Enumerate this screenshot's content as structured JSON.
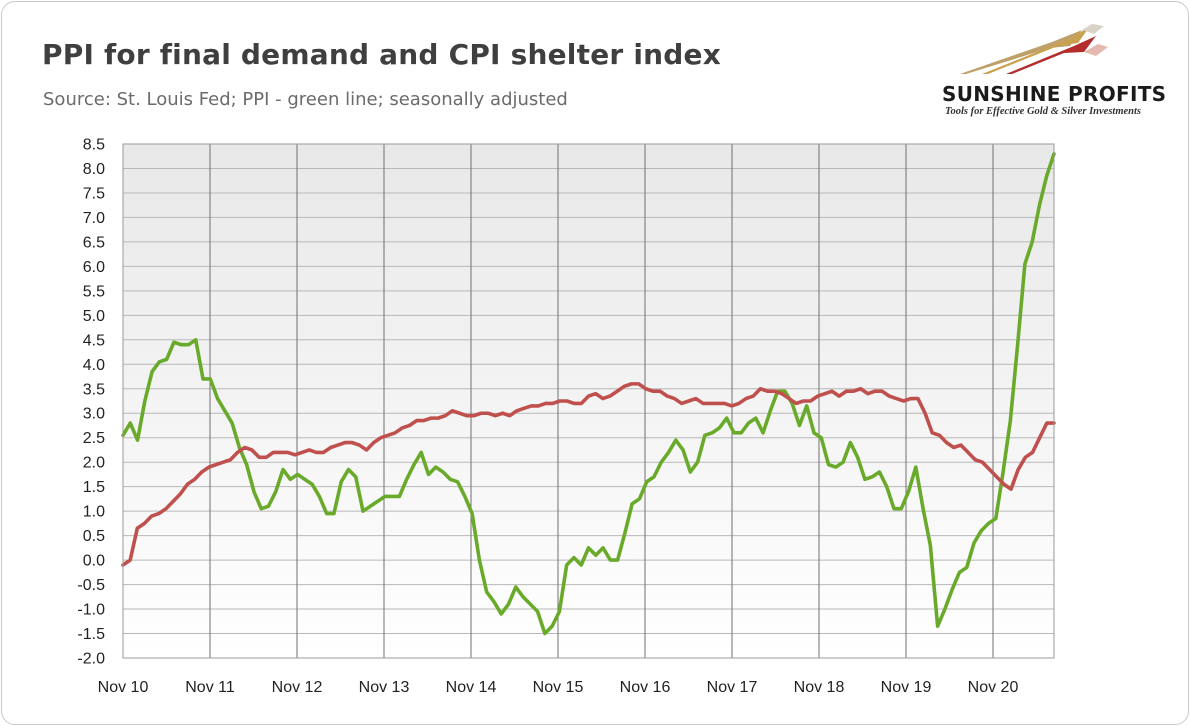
{
  "header": {
    "title": "PPI for final demand and CPI shelter index",
    "subtitle": "Source: St. Louis Fed; PPI - green line; seasonally adjusted"
  },
  "logo": {
    "name": "SUNSHINE PROFITS",
    "tagline": "Tools for Effective Gold & Silver Investments"
  },
  "chart_data": {
    "type": "line",
    "title": "PPI for final demand and CPI shelter index",
    "xlabel": "",
    "ylabel": "",
    "ylim": [
      -2.0,
      8.5
    ],
    "grid": true,
    "x_tick_labels": [
      "Nov 10",
      "Nov 11",
      "Nov 12",
      "Nov 13",
      "Nov 14",
      "Nov 15",
      "Nov 16",
      "Nov 17",
      "Nov 18",
      "Nov 19",
      "Nov 20"
    ],
    "y_tick_labels": [
      "8.5",
      "8.0",
      "7.5",
      "7.0",
      "6.5",
      "6.0",
      "5.5",
      "5.0",
      "4.5",
      "4.0",
      "3.5",
      "3.0",
      "2.5",
      "2.0",
      "1.5",
      "1.0",
      "0.5",
      "0.0",
      "-0.5",
      "-1.0",
      "-1.5",
      "-2.0"
    ],
    "series": [
      {
        "key": "ppi",
        "color": "#6aaa2b",
        "values": [
          2.55,
          2.8,
          2.45,
          3.25,
          3.85,
          4.05,
          4.1,
          4.45,
          4.4,
          4.4,
          4.5,
          3.7,
          3.7,
          3.3,
          3.05,
          2.8,
          2.3,
          1.95,
          1.4,
          1.05,
          1.1,
          1.4,
          1.85,
          1.65,
          1.75,
          1.65,
          1.55,
          1.3,
          0.95,
          0.95,
          1.6,
          1.85,
          1.7,
          1.0,
          1.1,
          1.2,
          1.3,
          1.3,
          1.3,
          1.65,
          1.95,
          2.2,
          1.75,
          1.9,
          1.8,
          1.65,
          1.6,
          1.3,
          0.95,
          0.0,
          -0.65,
          -0.85,
          -1.1,
          -0.9,
          -0.55,
          -0.75,
          -0.9,
          -1.05,
          -1.5,
          -1.35,
          -1.05,
          -0.1,
          0.05,
          -0.1,
          0.25,
          0.1,
          0.25,
          0.0,
          0.0,
          0.55,
          1.15,
          1.25,
          1.6,
          1.7,
          2.0,
          2.2,
          2.45,
          2.25,
          1.8,
          2.0,
          2.55,
          2.6,
          2.7,
          2.9,
          2.6,
          2.6,
          2.8,
          2.9,
          2.6,
          3.05,
          3.45,
          3.45,
          3.2,
          2.75,
          3.15,
          2.6,
          2.5,
          1.95,
          1.9,
          2.0,
          2.4,
          2.1,
          1.65,
          1.7,
          1.8,
          1.5,
          1.05,
          1.05,
          1.4,
          1.9,
          1.05,
          0.3,
          -1.35,
          -1.0,
          -0.6,
          -0.25,
          -0.15,
          0.35,
          0.6,
          0.75,
          0.85,
          1.8,
          2.85,
          4.4,
          6.05,
          6.5,
          7.25,
          7.85,
          8.3
        ]
      },
      {
        "key": "cpi_shelter",
        "color": "#c0504d",
        "values": [
          -0.1,
          0.0,
          0.65,
          0.75,
          0.9,
          0.95,
          1.05,
          1.2,
          1.35,
          1.55,
          1.65,
          1.8,
          1.9,
          1.95,
          2.0,
          2.05,
          2.2,
          2.3,
          2.25,
          2.1,
          2.1,
          2.2,
          2.2,
          2.2,
          2.15,
          2.2,
          2.25,
          2.2,
          2.2,
          2.3,
          2.35,
          2.4,
          2.4,
          2.35,
          2.25,
          2.4,
          2.5,
          2.55,
          2.6,
          2.7,
          2.75,
          2.85,
          2.85,
          2.9,
          2.9,
          2.95,
          3.05,
          3.0,
          2.95,
          2.95,
          3.0,
          3.0,
          2.95,
          3.0,
          2.95,
          3.05,
          3.1,
          3.15,
          3.15,
          3.2,
          3.2,
          3.25,
          3.25,
          3.2,
          3.2,
          3.35,
          3.4,
          3.3,
          3.35,
          3.45,
          3.55,
          3.6,
          3.6,
          3.5,
          3.45,
          3.45,
          3.35,
          3.3,
          3.2,
          3.25,
          3.3,
          3.2,
          3.2,
          3.2,
          3.2,
          3.15,
          3.2,
          3.3,
          3.35,
          3.5,
          3.45,
          3.45,
          3.4,
          3.3,
          3.2,
          3.25,
          3.25,
          3.35,
          3.4,
          3.45,
          3.35,
          3.45,
          3.45,
          3.5,
          3.4,
          3.45,
          3.45,
          3.35,
          3.3,
          3.25,
          3.3,
          3.3,
          3.0,
          2.6,
          2.55,
          2.4,
          2.3,
          2.35,
          2.2,
          2.05,
          2.0,
          1.85,
          1.7,
          1.55,
          1.45,
          1.85,
          2.1,
          2.2,
          2.5,
          2.8,
          2.8
        ]
      }
    ]
  }
}
